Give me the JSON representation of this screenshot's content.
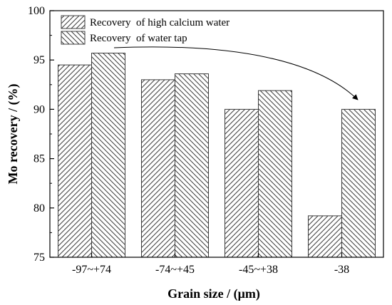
{
  "chart_data": {
    "type": "bar",
    "title": "",
    "xlabel": "Grain size / (μm)",
    "ylabel": "Mo recovery / (%)",
    "categories": [
      "-97~+74",
      "-74~+45",
      "-45~+38",
      "-38"
    ],
    "ylim": [
      75,
      100
    ],
    "yticks": [
      "75",
      "80",
      "85",
      "90",
      "95",
      "100"
    ],
    "grid": false,
    "legend_position": "top-left",
    "series": [
      {
        "name": "Recovery  of high calcium water",
        "values": [
          94.5,
          93.0,
          90.0,
          79.2
        ],
        "hatch": "forward"
      },
      {
        "name": "Recovery  of water tap",
        "values": [
          95.7,
          93.6,
          91.9,
          90.0
        ],
        "hatch": "backward"
      }
    ],
    "annotation": "curved arrow from the first group toward the last group",
    "colors": {
      "bar_stroke": "#3c3c3c",
      "hatch": "#3c3c3c",
      "axis": "#000000"
    }
  }
}
